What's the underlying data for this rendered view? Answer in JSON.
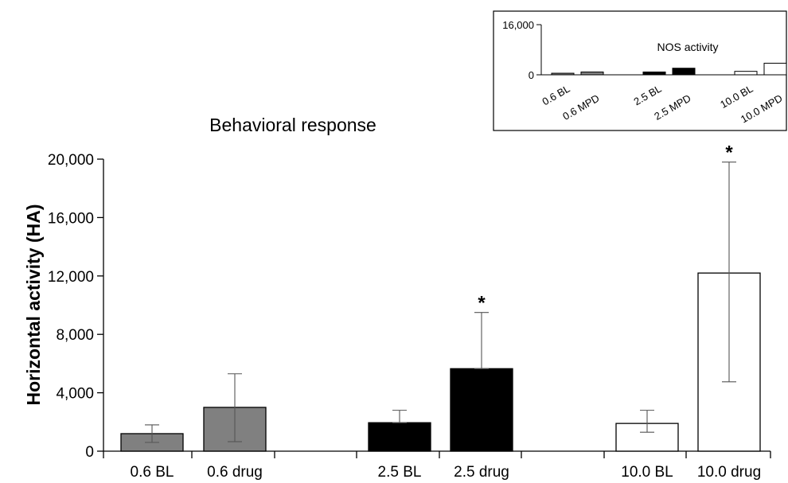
{
  "chart_data": [
    {
      "type": "bar",
      "title": "Behavioral response",
      "ylabel": "Horizontal activity (HA)",
      "ylim": [
        0,
        20000
      ],
      "yticks": [
        0,
        4000,
        8000,
        12000,
        16000,
        20000
      ],
      "ytick_labels": [
        "0",
        "4,000",
        "8,000",
        "12,000",
        "16,000",
        "20,000"
      ],
      "categories": [
        "0.6 BL",
        "0.6 drug",
        "2.5 BL",
        "2.5 drug",
        "10.0 BL",
        "10.0 drug"
      ],
      "values": [
        1200,
        3000,
        1950,
        5650,
        1900,
        12200
      ],
      "error_upper": [
        1800,
        5300,
        2800,
        9500,
        2800,
        19800
      ],
      "error_lower": [
        600,
        650,
        1950,
        5650,
        1300,
        4750
      ],
      "significance": [
        "",
        "",
        "",
        "*",
        "",
        "*"
      ],
      "colors": [
        "#808080",
        "#808080",
        "#000000",
        "#000000",
        "#ffffff",
        "#ffffff"
      ]
    },
    {
      "type": "bar",
      "title": "NOS activity",
      "ylim": [
        0,
        16000
      ],
      "yticks": [
        0,
        16000
      ],
      "ytick_labels": [
        "0",
        "16,000"
      ],
      "categories": [
        "0.6 BL",
        "0.6 MPD",
        "2.5 BL",
        "2.5 MPD",
        "10.0 BL",
        "10.0 MPD"
      ],
      "values": [
        500,
        900,
        900,
        2100,
        1100,
        3700
      ],
      "colors": [
        "#808080",
        "#808080",
        "#000000",
        "#000000",
        "#ffffff",
        "#ffffff"
      ]
    }
  ]
}
